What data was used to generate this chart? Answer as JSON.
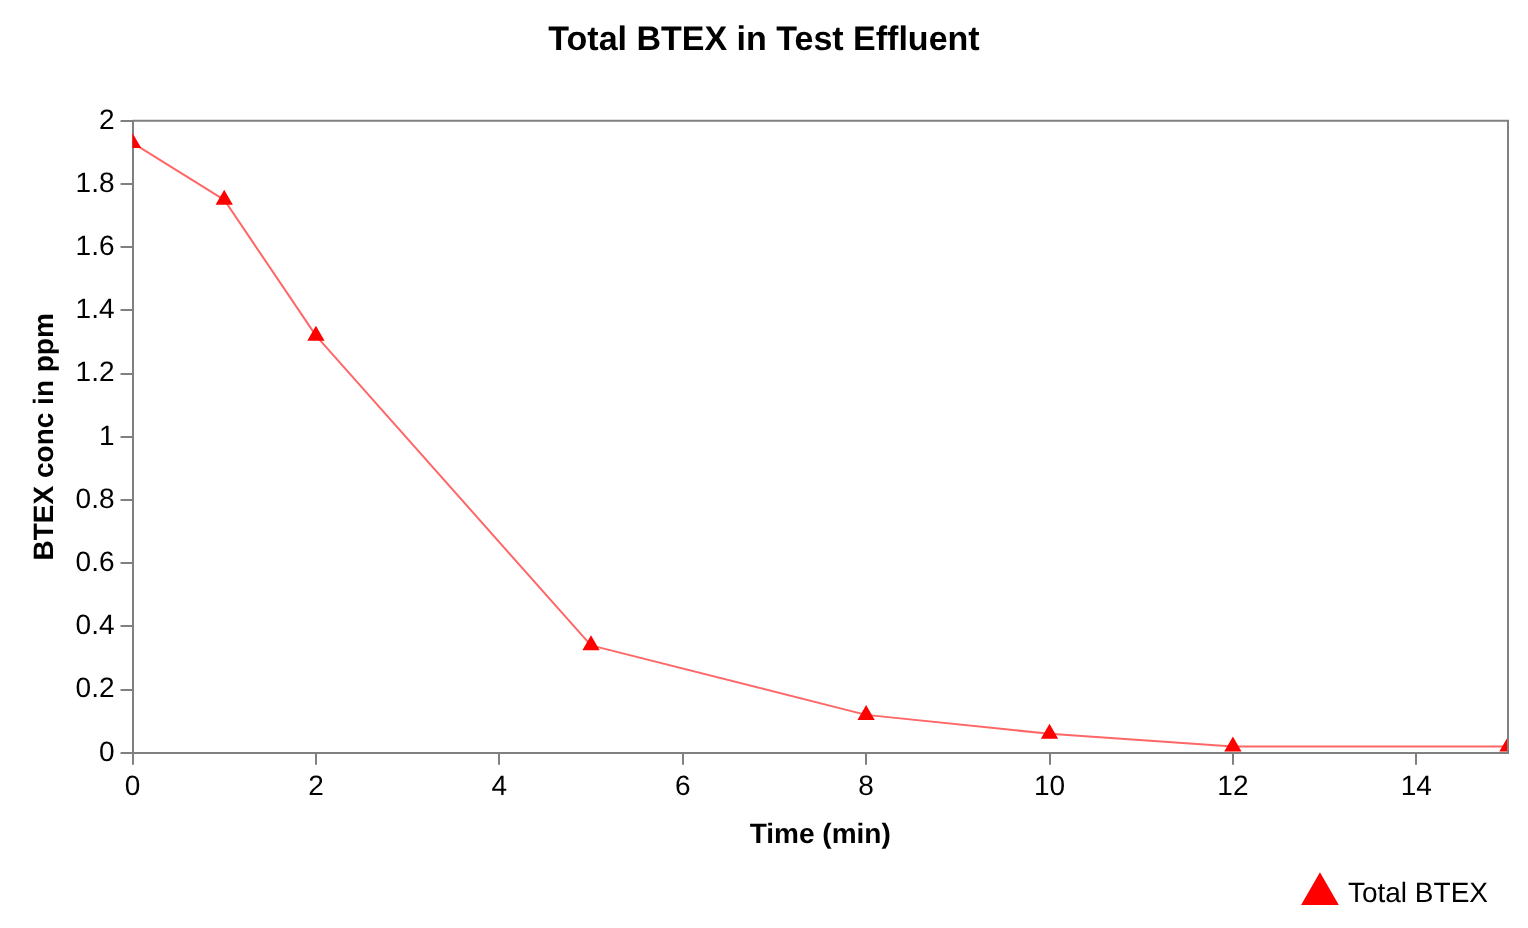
{
  "chart_data": {
    "type": "line",
    "title": "Total BTEX in Test Effluent",
    "xlabel": "Time (min)",
    "ylabel": "BTEX conc in ppm",
    "x": [
      0,
      1,
      2,
      5,
      8,
      10,
      12,
      15
    ],
    "series": [
      {
        "name": "Total BTEX",
        "color": "#ff0000",
        "values": [
          1.93,
          1.75,
          1.32,
          0.34,
          0.12,
          0.06,
          0.02,
          0.02
        ]
      }
    ],
    "xlim": [
      0,
      15
    ],
    "xticks": [
      0,
      2,
      4,
      6,
      8,
      10,
      12,
      14
    ],
    "ylim": [
      0,
      2
    ],
    "yticks": [
      0,
      0.2,
      0.4,
      0.6,
      0.8,
      1,
      1.2,
      1.4,
      1.6,
      1.8,
      2
    ],
    "grid": false,
    "legend": "bottom right",
    "marker": "triangle",
    "line_style": "solid"
  }
}
